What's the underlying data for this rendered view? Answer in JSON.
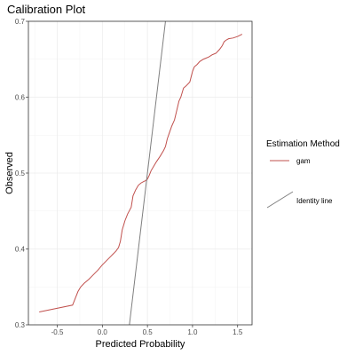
{
  "chart_data": {
    "type": "line",
    "title": "Calibration Plot",
    "xlabel": "Predicted Probability",
    "ylabel": "Observed",
    "xlim": [
      -0.82,
      1.66
    ],
    "ylim": [
      0.3,
      0.7
    ],
    "x_ticks": [
      -0.5,
      0.0,
      0.5,
      1.0,
      1.5
    ],
    "x_tick_labels": [
      "-0.5",
      "0.0",
      "0.5",
      "1.0",
      "1.5"
    ],
    "y_ticks": [
      0.3,
      0.4,
      0.5,
      0.6,
      0.7
    ],
    "y_tick_labels": [
      "0.3",
      "0.4",
      "0.5",
      "0.6",
      "0.7"
    ],
    "grid": true,
    "legend": {
      "title": "Estimation Method",
      "position": "right",
      "entries": [
        {
          "label": "gam",
          "color": "#c0504d",
          "kind": "line"
        },
        {
          "label": "Identity line",
          "color": "#7f7f7f",
          "kind": "diagonal"
        }
      ]
    },
    "series": [
      {
        "name": "gam",
        "color": "#c0504d",
        "x": [
          -0.7,
          -0.33,
          -0.3,
          -0.27,
          -0.24,
          -0.2,
          -0.15,
          -0.1,
          -0.05,
          0.0,
          0.05,
          0.1,
          0.15,
          0.18,
          0.2,
          0.22,
          0.25,
          0.28,
          0.32,
          0.34,
          0.37,
          0.4,
          0.43,
          0.46,
          0.48,
          0.5,
          0.52,
          0.54,
          0.57,
          0.6,
          0.64,
          0.68,
          0.7,
          0.72,
          0.74,
          0.77,
          0.8,
          0.84,
          0.85,
          0.87,
          0.9,
          0.93,
          0.97,
          1.0,
          1.02,
          1.05,
          1.08,
          1.12,
          1.18,
          1.22,
          1.26,
          1.3,
          1.33,
          1.35,
          1.37,
          1.4,
          1.45,
          1.5,
          1.55
        ],
        "y": [
          0.317,
          0.326,
          0.335,
          0.344,
          0.35,
          0.355,
          0.36,
          0.366,
          0.372,
          0.379,
          0.385,
          0.391,
          0.397,
          0.402,
          0.41,
          0.425,
          0.437,
          0.446,
          0.455,
          0.47,
          0.478,
          0.484,
          0.487,
          0.489,
          0.49,
          0.492,
          0.497,
          0.503,
          0.509,
          0.515,
          0.522,
          0.53,
          0.535,
          0.545,
          0.552,
          0.562,
          0.57,
          0.59,
          0.595,
          0.6,
          0.612,
          0.615,
          0.62,
          0.634,
          0.64,
          0.643,
          0.647,
          0.65,
          0.653,
          0.656,
          0.658,
          0.663,
          0.668,
          0.673,
          0.675,
          0.677,
          0.678,
          0.68,
          0.683
        ]
      },
      {
        "name": "Identity line",
        "color": "#7f7f7f",
        "x": [
          0.3,
          0.7
        ],
        "y": [
          0.3,
          0.7
        ]
      }
    ]
  }
}
